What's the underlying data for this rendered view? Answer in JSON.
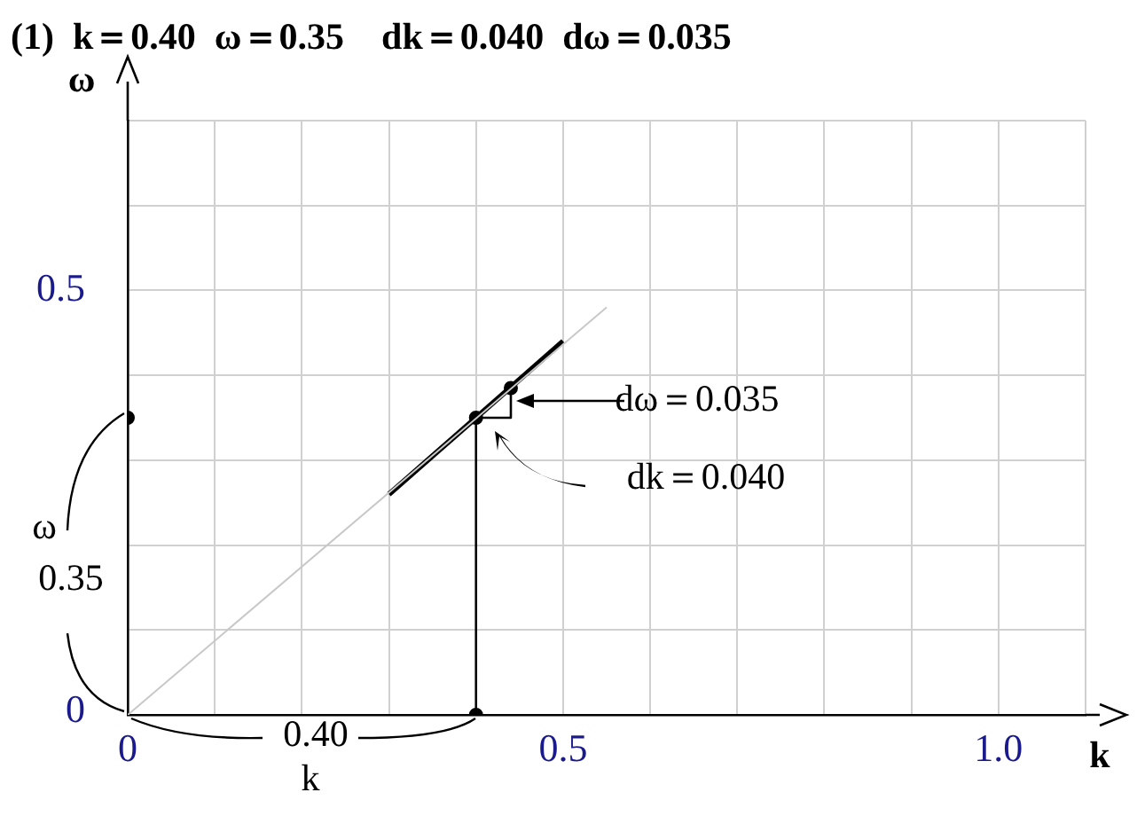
{
  "chart_data": {
    "type": "line",
    "title": "(1)  k＝0.40  ω＝0.35    dk＝0.040  dω＝0.035",
    "xlabel": "k",
    "ylabel": "ω",
    "xlim": [
      0,
      1.1
    ],
    "ylim": [
      0,
      0.7
    ],
    "xticks": [
      0,
      {
        "value": 0.1,
        "label": null
      },
      {
        "value": 0.2,
        "label": null
      },
      {
        "value": 0.3,
        "label": null
      },
      {
        "value": 0.4,
        "label": null
      },
      0.5,
      {
        "value": 0.6,
        "label": null
      },
      {
        "value": 0.7,
        "label": null
      },
      {
        "value": 0.8,
        "label": null
      },
      {
        "value": 0.9,
        "label": null
      },
      {
        "value": 1.0,
        "label": "1.0"
      },
      {
        "value": 1.1,
        "label": null
      }
    ],
    "yticks": [
      0,
      {
        "value": 0.1,
        "label": null
      },
      {
        "value": 0.2,
        "label": null
      },
      {
        "value": 0.3,
        "label": null
      },
      {
        "value": 0.4,
        "label": null
      },
      0.5,
      {
        "value": 0.6,
        "label": null
      },
      {
        "value": 0.7,
        "label": null
      }
    ],
    "grid": true,
    "legend": false,
    "series": [
      {
        "type": "line",
        "color": "#c8c8c8",
        "marker": "none",
        "x": [
          0,
          0.55
        ],
        "values": [
          0,
          0.48
        ]
      },
      {
        "type": "line",
        "color": "#000000",
        "marker": "none",
        "x": [
          0.3,
          0.5
        ],
        "values": [
          0.26,
          0.44
        ]
      },
      {
        "type": "line",
        "color": "#000000",
        "marker": "none",
        "x": [
          0.4,
          0.4
        ],
        "values": [
          0,
          0.35
        ]
      },
      {
        "type": "line",
        "color": "#000000",
        "marker": "none",
        "x": [
          0.4,
          0.44,
          0.44
        ],
        "values": [
          0.35,
          0.35,
          0.385
        ]
      },
      {
        "type": "scatter",
        "color": "#000000",
        "marker": "circle",
        "x": [
          0,
          0.4,
          0.4,
          0.44
        ],
        "values": [
          0.35,
          0,
          0.35,
          0.385
        ]
      }
    ],
    "annotations": [
      {
        "text": "dω＝0.035",
        "x": 0.44,
        "y": 0.37
      },
      "dk＝0.040",
      "ω",
      "0.35",
      "0.40",
      "k"
    ]
  }
}
